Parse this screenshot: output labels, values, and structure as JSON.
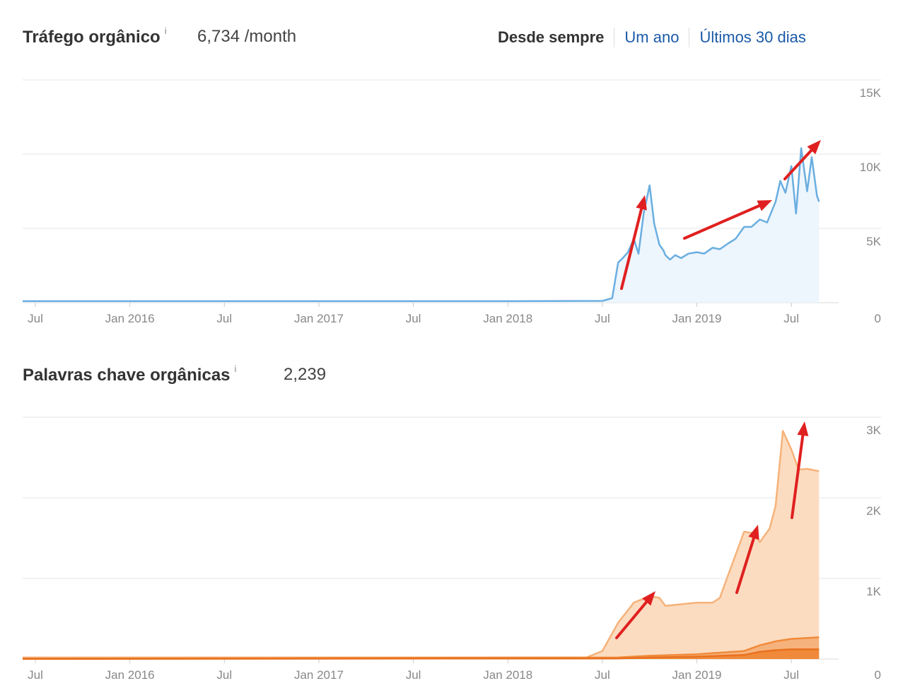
{
  "traffic": {
    "title": "Tráfego orgânico",
    "info_icon": "info-icon",
    "value": "6,734 /month"
  },
  "keywords": {
    "title": "Palavras chave orgânicas",
    "info_icon": "info-icon",
    "value": "2,239"
  },
  "range_tabs": [
    {
      "label": "Desde sempre",
      "active": true
    },
    {
      "label": "Um ano",
      "active": false
    },
    {
      "label": "Últimos 30 dias",
      "active": false
    }
  ],
  "colors": {
    "traffic_line": "#6aaee0",
    "traffic_fill": "#edf5fd",
    "kw_top50": "#f5b27a",
    "kw_top50_fill": "#fcdcc0",
    "kw_top10": "#f08a3a",
    "kw_top10_fill": "#f6b27c",
    "kw_top3": "#e8711f",
    "kw_top3_fill": "#f08a3a",
    "arrow": "#e02020",
    "grid": "#e6e6e6"
  },
  "chart_data": [
    {
      "type": "area",
      "title": "Tráfego orgânico",
      "x_tick_labels": [
        "Jul",
        "Jan 2016",
        "Jul",
        "Jan 2017",
        "Jul",
        "Jan 2018",
        "Jul",
        "Jan 2019",
        "Jul"
      ],
      "y_tick_labels": [
        "0",
        "5K",
        "10K",
        "15K"
      ],
      "ylim": [
        0,
        15000
      ],
      "grid": true,
      "series": [
        {
          "x": [
            "2015-06",
            "2016-01",
            "2017-01",
            "2018-01",
            "2018-07",
            "2018-07-20",
            "2018-08",
            "2018-08-10",
            "2018-08-20",
            "2018-09",
            "2018-09-10",
            "2018-09-20",
            "2018-10",
            "2018-10-10",
            "2018-10-20",
            "2018-10-28",
            "2018-11",
            "2018-11-10",
            "2018-11-20",
            "2018-12",
            "2018-12-15",
            "2019-01",
            "2019-01-15",
            "2019-02",
            "2019-02-15",
            "2019-03",
            "2019-03-15",
            "2019-04",
            "2019-04-15",
            "2019-05",
            "2019-05-15",
            "2019-06",
            "2019-06-10",
            "2019-06-20",
            "2019-07",
            "2019-07-10",
            "2019-07-20",
            "2019-08",
            "2019-08-10",
            "2019-08-20",
            "2019-08-24"
          ],
          "y": [
            100,
            100,
            100,
            100,
            120,
            300,
            2700,
            3000,
            3400,
            4300,
            3300,
            6000,
            7900,
            5300,
            3900,
            3500,
            3200,
            2900,
            3200,
            3000,
            3300,
            3400,
            3300,
            3700,
            3600,
            4000,
            4300,
            5100,
            5100,
            5600,
            5400,
            6800,
            8200,
            7400,
            9200,
            6000,
            10400,
            7500,
            9800,
            7200,
            6800
          ]
        }
      ],
      "annotations": [
        "red arrows marking growth trend"
      ]
    },
    {
      "type": "area",
      "title": "Palavras chave orgânicas",
      "x_tick_labels": [
        "Jul",
        "Jan 2016",
        "Jul",
        "Jan 2017",
        "Jul",
        "Jan 2018",
        "Jul",
        "Jan 2019",
        "Jul"
      ],
      "y_tick_labels": [
        "0",
        "1K",
        "2K",
        "3K"
      ],
      "ylim": [
        0,
        3000
      ],
      "grid": true,
      "series": [
        {
          "x": [
            "2015-06",
            "2018-06",
            "2018-07",
            "2018-08",
            "2018-09",
            "2018-10",
            "2018-10-20",
            "2018-11",
            "2018-12",
            "2019-01",
            "2019-02",
            "2019-02-15",
            "2019-03",
            "2019-04",
            "2019-04-20",
            "2019-05",
            "2019-05-20",
            "2019-06",
            "2019-06-15",
            "2019-07",
            "2019-07-15",
            "2019-08",
            "2019-08-24"
          ],
          "y": [
            20,
            20,
            100,
            450,
            700,
            780,
            760,
            660,
            680,
            700,
            700,
            760,
            1050,
            1580,
            1560,
            1450,
            1620,
            1900,
            2830,
            2600,
            2350,
            2360,
            2330
          ]
        },
        {
          "x": [
            "2015-06",
            "2018-08",
            "2018-10",
            "2019-01",
            "2019-04",
            "2019-05",
            "2019-06",
            "2019-07",
            "2019-08-24"
          ],
          "y": [
            5,
            20,
            40,
            60,
            100,
            170,
            220,
            250,
            270
          ]
        },
        {
          "x": [
            "2015-06",
            "2018-08",
            "2018-10",
            "2019-01",
            "2019-04",
            "2019-05",
            "2019-06",
            "2019-07",
            "2019-08-24"
          ],
          "y": [
            2,
            8,
            18,
            30,
            50,
            90,
            110,
            120,
            120
          ]
        }
      ],
      "annotations": [
        "red arrows marking growth trend"
      ]
    }
  ]
}
